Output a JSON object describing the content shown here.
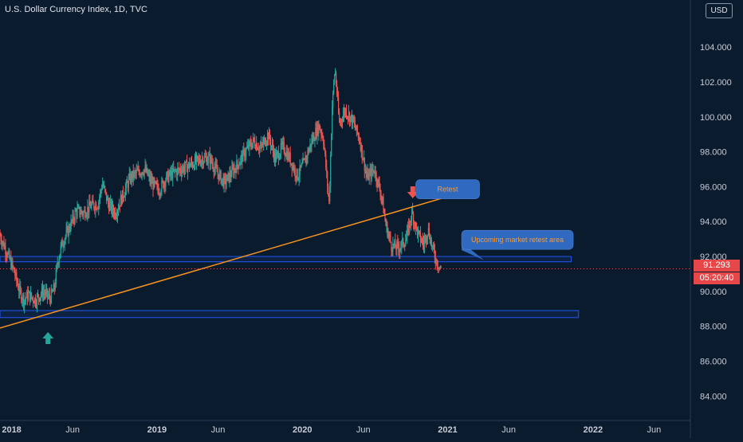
{
  "chart_data": {
    "type": "candlestick",
    "title": "U.S. Dollar Currency Index, 1D, TVC",
    "currency": "USD",
    "y_axis": {
      "ticks": [
        "84.000",
        "86.000",
        "88.000",
        "90.000",
        "92.000",
        "94.000",
        "96.000",
        "98.000",
        "100.000",
        "102.000",
        "104.000"
      ],
      "range": [
        82.6,
        106.7
      ]
    },
    "x_axis": {
      "ticks": [
        {
          "label": "2018",
          "t": 2018.0
        },
        {
          "label": "Jun",
          "t": 2018.42
        },
        {
          "label": "2019",
          "t": 2019.0
        },
        {
          "label": "Jun",
          "t": 2019.42
        },
        {
          "label": "2020",
          "t": 2020.0
        },
        {
          "label": "Jun",
          "t": 2020.42
        },
        {
          "label": "2021",
          "t": 2021.0
        },
        {
          "label": "Jun",
          "t": 2021.42
        },
        {
          "label": "2022",
          "t": 2022.0
        },
        {
          "label": "Jun",
          "t": 2022.42
        }
      ],
      "range": [
        2017.92,
        2022.67
      ]
    },
    "price_path": [
      [
        2017.92,
        93.3
      ],
      [
        2017.97,
        92.3
      ],
      [
        2018.02,
        91.2
      ],
      [
        2018.06,
        90.0
      ],
      [
        2018.09,
        89.5
      ],
      [
        2018.12,
        89.8
      ],
      [
        2018.17,
        89.5
      ],
      [
        2018.22,
        90.0
      ],
      [
        2018.27,
        89.6
      ],
      [
        2018.3,
        90.2
      ],
      [
        2018.32,
        91.6
      ],
      [
        2018.35,
        92.7
      ],
      [
        2018.4,
        93.6
      ],
      [
        2018.45,
        94.6
      ],
      [
        2018.5,
        94.5
      ],
      [
        2018.55,
        94.9
      ],
      [
        2018.6,
        95.0
      ],
      [
        2018.63,
        96.2
      ],
      [
        2018.67,
        95.0
      ],
      [
        2018.72,
        94.5
      ],
      [
        2018.77,
        95.5
      ],
      [
        2018.82,
        96.5
      ],
      [
        2018.87,
        96.8
      ],
      [
        2018.92,
        97.0
      ],
      [
        2018.97,
        96.2
      ],
      [
        2019.02,
        95.8
      ],
      [
        2019.07,
        96.5
      ],
      [
        2019.12,
        96.8
      ],
      [
        2019.17,
        97.0
      ],
      [
        2019.22,
        97.2
      ],
      [
        2019.27,
        97.4
      ],
      [
        2019.32,
        97.6
      ],
      [
        2019.37,
        97.6
      ],
      [
        2019.42,
        96.8
      ],
      [
        2019.47,
        96.2
      ],
      [
        2019.52,
        96.8
      ],
      [
        2019.57,
        97.4
      ],
      [
        2019.62,
        98.1
      ],
      [
        2019.67,
        98.6
      ],
      [
        2019.72,
        98.2
      ],
      [
        2019.77,
        99.0
      ],
      [
        2019.82,
        97.6
      ],
      [
        2019.87,
        98.3
      ],
      [
        2019.92,
        97.6
      ],
      [
        2019.97,
        96.6
      ],
      [
        2020.02,
        97.4
      ],
      [
        2020.07,
        98.6
      ],
      [
        2020.12,
        99.5
      ],
      [
        2020.15,
        98.8
      ],
      [
        2020.19,
        95.0
      ],
      [
        2020.21,
        100.5
      ],
      [
        2020.23,
        102.8
      ],
      [
        2020.26,
        99.6
      ],
      [
        2020.3,
        100.4
      ],
      [
        2020.35,
        99.8
      ],
      [
        2020.4,
        98.7
      ],
      [
        2020.45,
        96.5
      ],
      [
        2020.5,
        97.0
      ],
      [
        2020.55,
        95.5
      ],
      [
        2020.58,
        93.8
      ],
      [
        2020.62,
        92.6
      ],
      [
        2020.67,
        92.5
      ],
      [
        2020.72,
        93.0
      ],
      [
        2020.76,
        94.5
      ],
      [
        2020.8,
        93.3
      ],
      [
        2020.84,
        92.7
      ],
      [
        2020.87,
        93.6
      ],
      [
        2020.9,
        92.5
      ],
      [
        2020.93,
        91.7
      ],
      [
        2020.96,
        91.29
      ]
    ],
    "current_price": "91.293",
    "countdown": "05:20:40",
    "trendline": {
      "from": [
        2017.92,
        87.9
      ],
      "to": [
        2021.15,
        95.8
      ]
    },
    "zones": [
      {
        "t_from": 2017.92,
        "t_to": 2021.85,
        "low": 91.7,
        "high": 92.0
      },
      {
        "t_from": 2017.92,
        "t_to": 2021.9,
        "low": 88.5,
        "high": 88.9
      }
    ],
    "markers": [
      {
        "type": "arrow-up",
        "t": 2018.25,
        "price": 87.3
      },
      {
        "type": "arrow-down",
        "t": 2020.76,
        "price": 95.7
      }
    ],
    "callouts": [
      {
        "text": "Retest",
        "t": 2021.0,
        "price": 95.9
      },
      {
        "text": "Upcoming market retest area",
        "t": 2021.48,
        "price": 93.0
      }
    ],
    "colors": {
      "background": "#0b1b2e",
      "up": "#26a69a",
      "down": "#ef5350",
      "trendline": "#f7931e",
      "zone": "#1e4fd8",
      "callout": "#2f69c0",
      "callout_text": "#f59b3c",
      "price_tag": "#e8474a"
    }
  }
}
